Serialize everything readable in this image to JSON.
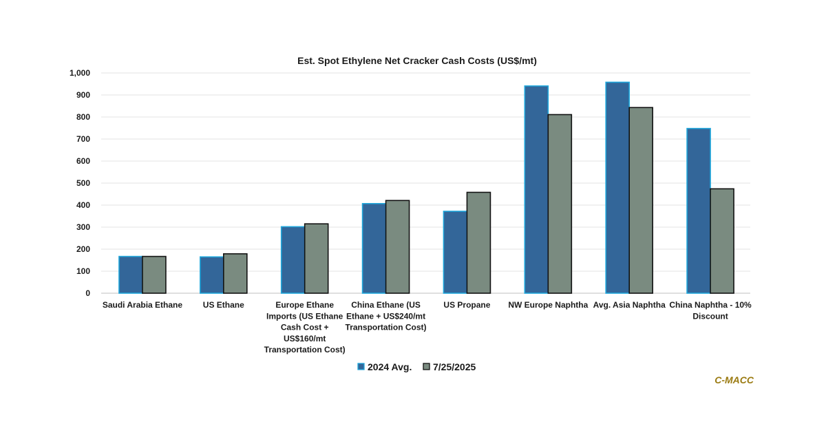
{
  "chart_data": {
    "type": "bar",
    "title": "Est. Spot Ethylene Net Cracker Cash Costs (US$/mt)",
    "xlabel": "",
    "ylabel": "",
    "ylim": [
      0,
      1000
    ],
    "yticks": [
      "1,000",
      "900",
      "800",
      "700",
      "600",
      "500",
      "400",
      "300",
      "200",
      "100",
      "0"
    ],
    "categories": [
      [
        "Saudi Arabia Ethane"
      ],
      [
        "US Ethane"
      ],
      [
        "Europe Ethane",
        "Imports (US Ethane",
        "Cash Cost +",
        "US$160/mt",
        "Transportation Cost)"
      ],
      [
        "China Ethane (US",
        "Ethane + US$240/mt",
        "Transportation Cost)"
      ],
      [
        "US Propane"
      ],
      [
        "NW Europe Naphtha"
      ],
      [
        "Avg. Asia Naphtha"
      ],
      [
        "China Naphtha - 10%",
        "Discount"
      ]
    ],
    "series": [
      {
        "name": "2024 Avg.",
        "color": "#336699",
        "stroke": "#1fa7dc",
        "values": [
          167,
          165,
          302,
          407,
          372,
          941,
          958,
          748
        ]
      },
      {
        "name": "7/25/2025",
        "color": "#7a8b80",
        "stroke": "#111111",
        "values": [
          167,
          179,
          315,
          421,
          458,
          811,
          843,
          474
        ]
      }
    ],
    "grid": true,
    "legend_position": "bottom"
  },
  "watermark": "C-MACC"
}
